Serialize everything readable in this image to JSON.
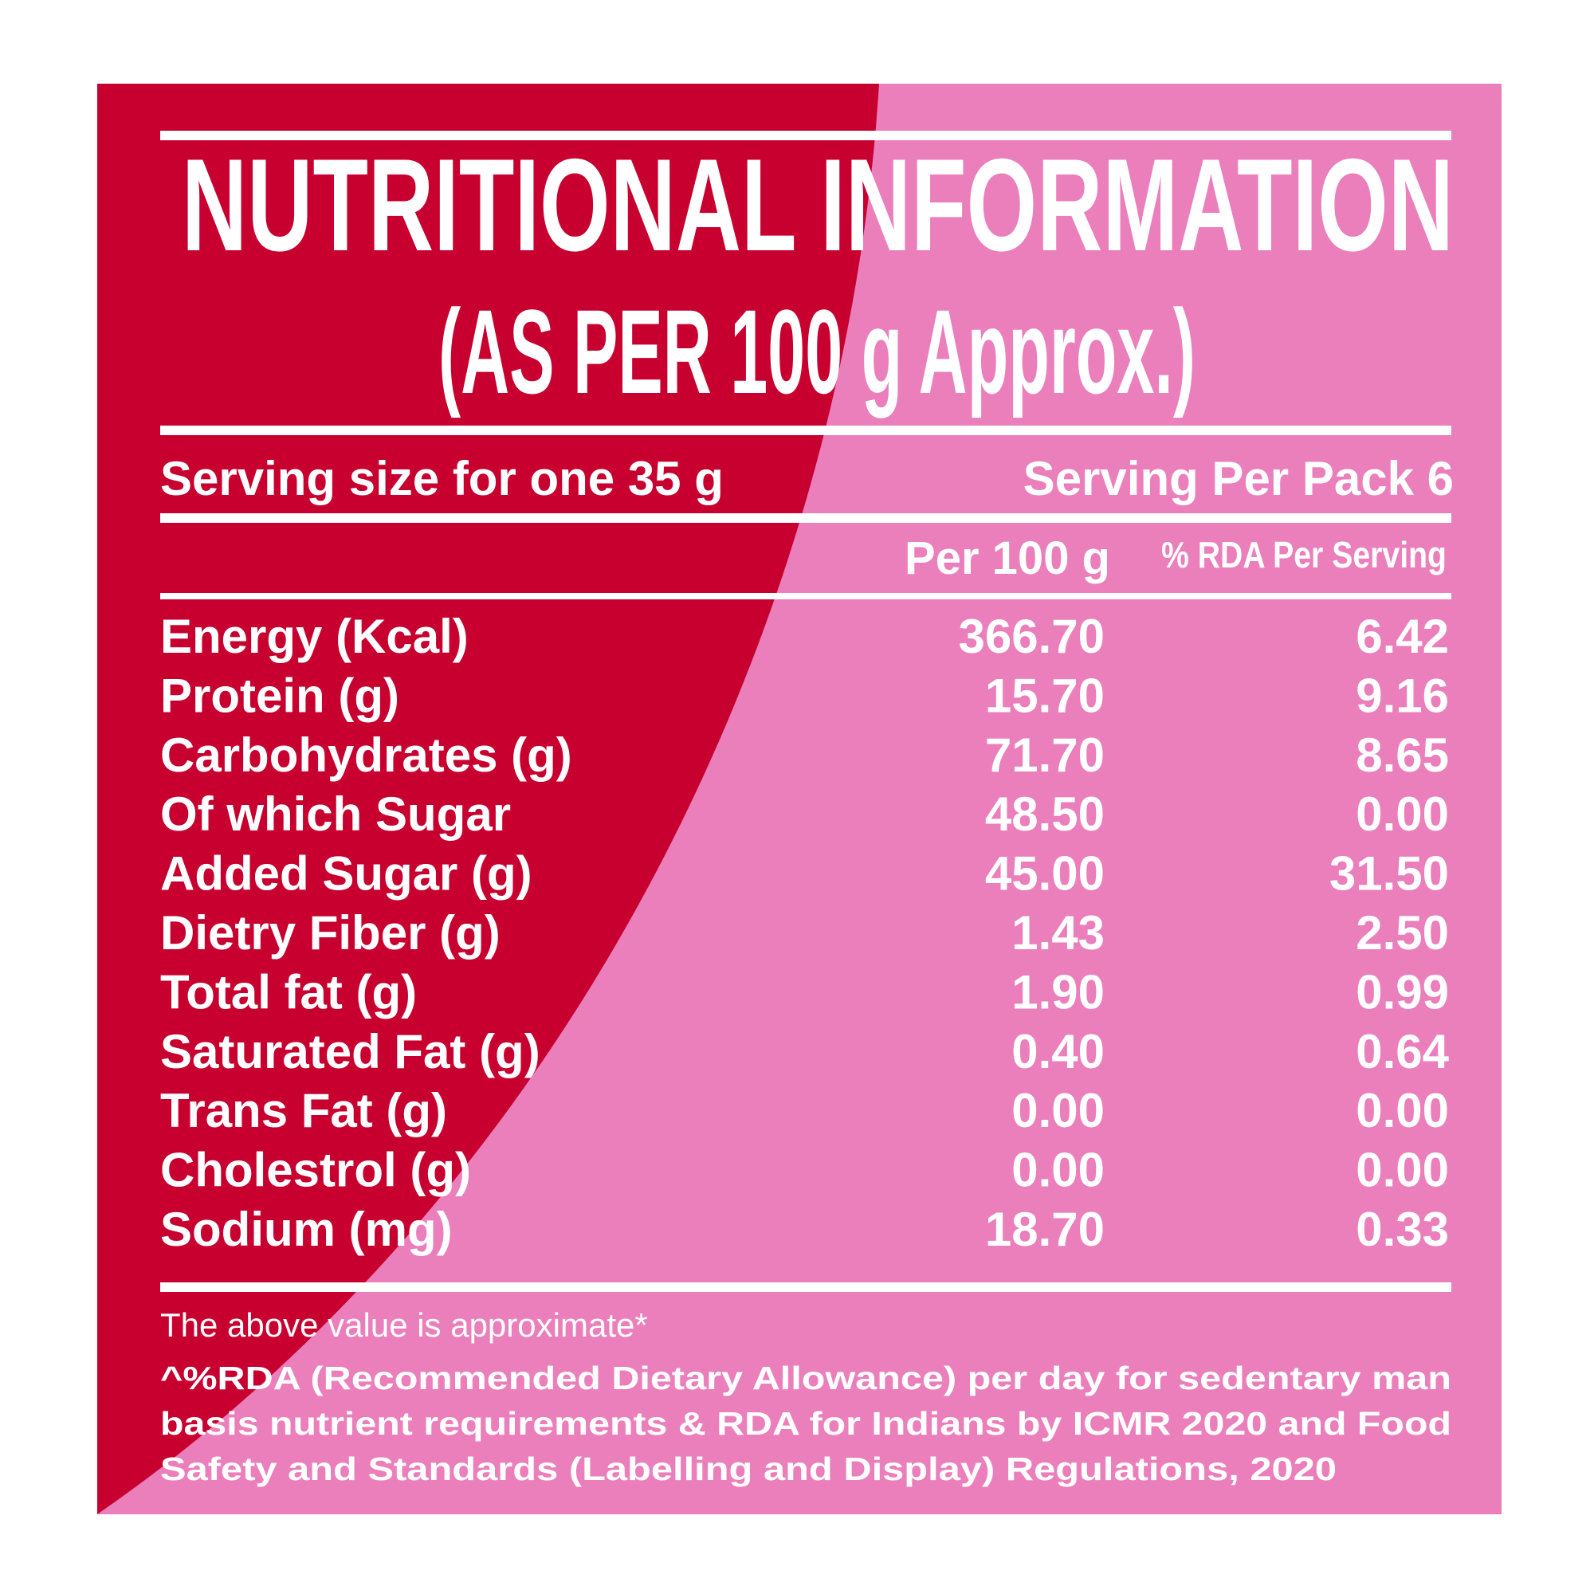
{
  "header": {
    "title": "NUTRITIONAL INFORMATION",
    "subtitle": "(AS PER 100 g Approx.)"
  },
  "serving": {
    "size": "Serving size for one 35 g",
    "per_pack": "Serving Per Pack 6"
  },
  "table": {
    "columns": [
      "Per 100 g",
      "% RDA Per Serving"
    ],
    "rows": [
      [
        "Energy (Kcal)",
        "366.70",
        "6.42"
      ],
      [
        "Protein (g)",
        "15.70",
        "9.16"
      ],
      [
        "Carbohydrates (g)",
        "71.70",
        "8.65"
      ],
      [
        "Of which Sugar",
        "48.50",
        "0.00"
      ],
      [
        "Added Sugar (g)",
        "45.00",
        "31.50"
      ],
      [
        "Dietry Fiber (g)",
        "1.43",
        "2.50"
      ],
      [
        "Total fat (g)",
        "1.90",
        "0.99"
      ],
      [
        "Saturated Fat (g)",
        "0.40",
        "0.64"
      ],
      [
        "Trans Fat (g)",
        "0.00",
        "0.00"
      ],
      [
        "Cholestrol (g)",
        "0.00",
        "0.00"
      ],
      [
        "Sodium (mg)",
        "18.70",
        "0.33"
      ]
    ]
  },
  "footer": {
    "note": "The above value is approximate*",
    "lines": [
      "^%RDA (Recommended Dietary Allowance) per day for sedentary man",
      "basis nutrient requirements & RDA for Indians by ICMR 2020 and Food",
      "Safety and Standards (Labelling and Display) Regulations, 2020"
    ]
  }
}
